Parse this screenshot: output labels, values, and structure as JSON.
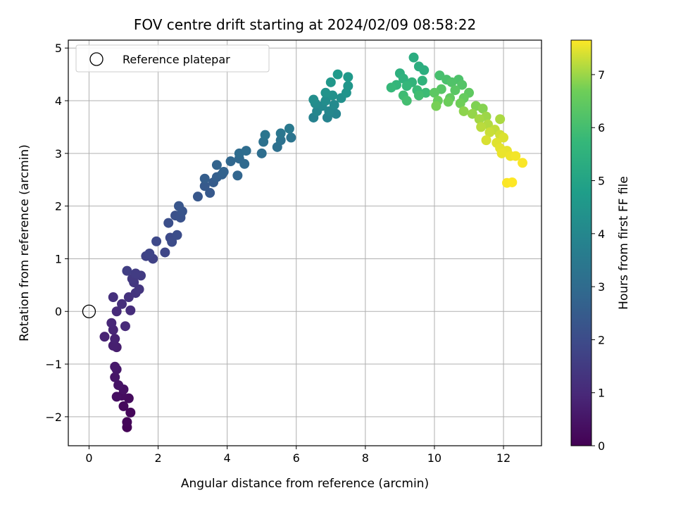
{
  "chart_data": {
    "type": "scatter",
    "title": "FOV centre drift starting at 2024/02/09 08:58:22",
    "xlabel": "Angular distance from reference (arcmin)",
    "ylabel": "Rotation from reference (arcmin)",
    "xlim": [
      -0.6,
      13.1
    ],
    "ylim": [
      -2.55,
      5.15
    ],
    "xticks": [
      "0",
      "2",
      "4",
      "6",
      "8",
      "10",
      "12"
    ],
    "yticks": [
      "−2",
      "−1",
      "0",
      "1",
      "2",
      "3",
      "4",
      "5"
    ],
    "grid": true,
    "legend": {
      "position": "top-left",
      "entries": [
        "Reference platepar"
      ]
    },
    "reference_point": {
      "x": 0,
      "y": 0
    },
    "colorbar": {
      "label": "Hours from first FF file",
      "range": [
        0,
        7.65
      ],
      "ticks": [
        "0",
        "1",
        "2",
        "3",
        "4",
        "5",
        "6",
        "7"
      ],
      "colormap": "viridis"
    },
    "points": [
      {
        "x": 1.1,
        "y": -2.2,
        "t": 0.05
      },
      {
        "x": 1.1,
        "y": -2.1,
        "t": 0.1
      },
      {
        "x": 1.2,
        "y": -1.92,
        "t": 0.15
      },
      {
        "x": 1.0,
        "y": -1.8,
        "t": 0.2
      },
      {
        "x": 1.15,
        "y": -1.65,
        "t": 0.25
      },
      {
        "x": 0.95,
        "y": -1.6,
        "t": 0.3
      },
      {
        "x": 0.8,
        "y": -1.62,
        "t": 0.35
      },
      {
        "x": 1.0,
        "y": -1.48,
        "t": 0.4
      },
      {
        "x": 0.85,
        "y": -1.4,
        "t": 0.45
      },
      {
        "x": 0.75,
        "y": -1.25,
        "t": 0.5
      },
      {
        "x": 0.8,
        "y": -1.1,
        "t": 0.55
      },
      {
        "x": 0.75,
        "y": -1.05,
        "t": 0.6
      },
      {
        "x": 0.8,
        "y": -0.68,
        "t": 0.7
      },
      {
        "x": 0.7,
        "y": -0.65,
        "t": 0.75
      },
      {
        "x": 0.75,
        "y": -0.52,
        "t": 0.8
      },
      {
        "x": 0.45,
        "y": -0.48,
        "t": 0.85
      },
      {
        "x": 0.7,
        "y": -0.35,
        "t": 0.9
      },
      {
        "x": 0.65,
        "y": -0.22,
        "t": 0.95
      },
      {
        "x": 1.05,
        "y": -0.28,
        "t": 1.0
      },
      {
        "x": 0.8,
        "y": 0.0,
        "t": 1.05
      },
      {
        "x": 1.2,
        "y": 0.02,
        "t": 1.1
      },
      {
        "x": 0.95,
        "y": 0.14,
        "t": 1.15
      },
      {
        "x": 0.7,
        "y": 0.27,
        "t": 1.2
      },
      {
        "x": 1.15,
        "y": 0.27,
        "t": 1.25
      },
      {
        "x": 1.35,
        "y": 0.35,
        "t": 1.3
      },
      {
        "x": 1.45,
        "y": 0.42,
        "t": 1.35
      },
      {
        "x": 1.3,
        "y": 0.55,
        "t": 1.4
      },
      {
        "x": 1.25,
        "y": 0.62,
        "t": 1.45
      },
      {
        "x": 1.5,
        "y": 0.68,
        "t": 1.5
      },
      {
        "x": 1.35,
        "y": 0.72,
        "t": 1.55
      },
      {
        "x": 1.1,
        "y": 0.77,
        "t": 1.6
      },
      {
        "x": 1.85,
        "y": 1.0,
        "t": 1.7
      },
      {
        "x": 1.65,
        "y": 1.05,
        "t": 1.75
      },
      {
        "x": 1.75,
        "y": 1.1,
        "t": 1.8
      },
      {
        "x": 2.2,
        "y": 1.12,
        "t": 1.85
      },
      {
        "x": 1.95,
        "y": 1.33,
        "t": 1.9
      },
      {
        "x": 2.35,
        "y": 1.4,
        "t": 1.95
      },
      {
        "x": 2.4,
        "y": 1.32,
        "t": 2.0
      },
      {
        "x": 2.55,
        "y": 1.45,
        "t": 2.05
      },
      {
        "x": 2.3,
        "y": 1.68,
        "t": 2.1
      },
      {
        "x": 2.5,
        "y": 1.82,
        "t": 2.15
      },
      {
        "x": 2.65,
        "y": 1.78,
        "t": 2.2
      },
      {
        "x": 2.7,
        "y": 1.9,
        "t": 2.25
      },
      {
        "x": 2.6,
        "y": 2.0,
        "t": 2.3
      },
      {
        "x": 3.15,
        "y": 2.18,
        "t": 2.35
      },
      {
        "x": 3.5,
        "y": 2.25,
        "t": 2.4
      },
      {
        "x": 3.35,
        "y": 2.38,
        "t": 2.45
      },
      {
        "x": 3.6,
        "y": 2.45,
        "t": 2.5
      },
      {
        "x": 3.35,
        "y": 2.52,
        "t": 2.55
      },
      {
        "x": 3.7,
        "y": 2.55,
        "t": 2.6
      },
      {
        "x": 3.85,
        "y": 2.6,
        "t": 2.65
      },
      {
        "x": 3.9,
        "y": 2.65,
        "t": 2.7
      },
      {
        "x": 3.7,
        "y": 2.78,
        "t": 2.75
      },
      {
        "x": 4.3,
        "y": 2.58,
        "t": 2.8
      },
      {
        "x": 4.1,
        "y": 2.85,
        "t": 2.85
      },
      {
        "x": 4.35,
        "y": 2.9,
        "t": 2.9
      },
      {
        "x": 4.5,
        "y": 2.8,
        "t": 2.95
      },
      {
        "x": 4.35,
        "y": 3.0,
        "t": 3.0
      },
      {
        "x": 4.55,
        "y": 3.05,
        "t": 3.05
      },
      {
        "x": 5.0,
        "y": 3.0,
        "t": 3.1
      },
      {
        "x": 5.45,
        "y": 3.12,
        "t": 3.15
      },
      {
        "x": 5.05,
        "y": 3.22,
        "t": 3.2
      },
      {
        "x": 5.55,
        "y": 3.25,
        "t": 3.25
      },
      {
        "x": 5.85,
        "y": 3.3,
        "t": 3.3
      },
      {
        "x": 5.1,
        "y": 3.35,
        "t": 3.35
      },
      {
        "x": 5.55,
        "y": 3.38,
        "t": 3.4
      },
      {
        "x": 5.8,
        "y": 3.47,
        "t": 3.5
      },
      {
        "x": 6.5,
        "y": 3.68,
        "t": 3.8
      },
      {
        "x": 6.9,
        "y": 3.68,
        "t": 3.85
      },
      {
        "x": 7.15,
        "y": 3.75,
        "t": 3.9
      },
      {
        "x": 6.6,
        "y": 3.8,
        "t": 3.95
      },
      {
        "x": 6.95,
        "y": 3.8,
        "t": 4.0
      },
      {
        "x": 6.75,
        "y": 3.9,
        "t": 4.05
      },
      {
        "x": 7.1,
        "y": 3.92,
        "t": 4.1
      },
      {
        "x": 6.55,
        "y": 3.95,
        "t": 4.15
      },
      {
        "x": 6.85,
        "y": 4.0,
        "t": 4.2
      },
      {
        "x": 6.5,
        "y": 4.02,
        "t": 4.25
      },
      {
        "x": 7.3,
        "y": 4.05,
        "t": 4.3
      },
      {
        "x": 7.05,
        "y": 4.1,
        "t": 4.35
      },
      {
        "x": 6.85,
        "y": 4.15,
        "t": 4.4
      },
      {
        "x": 7.45,
        "y": 4.15,
        "t": 4.45
      },
      {
        "x": 7.5,
        "y": 4.28,
        "t": 4.5
      },
      {
        "x": 7.0,
        "y": 4.35,
        "t": 4.55
      },
      {
        "x": 7.5,
        "y": 4.45,
        "t": 4.6
      },
      {
        "x": 7.2,
        "y": 4.5,
        "t": 4.65
      },
      {
        "x": 9.4,
        "y": 4.82,
        "t": 5.3
      },
      {
        "x": 9.55,
        "y": 4.65,
        "t": 5.35
      },
      {
        "x": 9.7,
        "y": 4.58,
        "t": 5.4
      },
      {
        "x": 9.0,
        "y": 4.52,
        "t": 5.45
      },
      {
        "x": 9.1,
        "y": 4.42,
        "t": 5.5
      },
      {
        "x": 9.65,
        "y": 4.38,
        "t": 5.55
      },
      {
        "x": 9.35,
        "y": 4.35,
        "t": 5.6
      },
      {
        "x": 8.9,
        "y": 4.3,
        "t": 5.65
      },
      {
        "x": 9.2,
        "y": 4.28,
        "t": 5.7
      },
      {
        "x": 8.75,
        "y": 4.25,
        "t": 5.75
      },
      {
        "x": 9.5,
        "y": 4.2,
        "t": 5.8
      },
      {
        "x": 9.75,
        "y": 4.15,
        "t": 5.85
      },
      {
        "x": 9.1,
        "y": 4.1,
        "t": 5.9
      },
      {
        "x": 9.55,
        "y": 4.1,
        "t": 5.95
      },
      {
        "x": 9.2,
        "y": 4.0,
        "t": 6.0
      },
      {
        "x": 10.15,
        "y": 4.48,
        "t": 6.05
      },
      {
        "x": 10.35,
        "y": 4.4,
        "t": 6.1
      },
      {
        "x": 10.7,
        "y": 4.4,
        "t": 6.15
      },
      {
        "x": 10.5,
        "y": 4.35,
        "t": 6.2
      },
      {
        "x": 10.8,
        "y": 4.3,
        "t": 6.25
      },
      {
        "x": 10.2,
        "y": 4.22,
        "t": 6.3
      },
      {
        "x": 10.6,
        "y": 4.2,
        "t": 6.35
      },
      {
        "x": 10.0,
        "y": 4.15,
        "t": 6.4
      },
      {
        "x": 11.0,
        "y": 4.15,
        "t": 6.45
      },
      {
        "x": 10.45,
        "y": 4.05,
        "t": 6.5
      },
      {
        "x": 10.85,
        "y": 4.05,
        "t": 6.55
      },
      {
        "x": 10.1,
        "y": 4.0,
        "t": 6.6
      },
      {
        "x": 10.4,
        "y": 3.98,
        "t": 6.65
      },
      {
        "x": 10.75,
        "y": 3.95,
        "t": 6.7
      },
      {
        "x": 10.05,
        "y": 3.9,
        "t": 6.75
      },
      {
        "x": 11.2,
        "y": 3.9,
        "t": 6.8
      },
      {
        "x": 11.4,
        "y": 3.85,
        "t": 6.85
      },
      {
        "x": 10.85,
        "y": 3.8,
        "t": 6.9
      },
      {
        "x": 11.1,
        "y": 3.75,
        "t": 6.95
      },
      {
        "x": 11.5,
        "y": 3.7,
        "t": 7.0
      },
      {
        "x": 11.3,
        "y": 3.65,
        "t": 7.05
      },
      {
        "x": 11.9,
        "y": 3.65,
        "t": 7.1
      },
      {
        "x": 11.55,
        "y": 3.55,
        "t": 7.15
      },
      {
        "x": 11.35,
        "y": 3.5,
        "t": 7.2
      },
      {
        "x": 11.75,
        "y": 3.45,
        "t": 7.25
      },
      {
        "x": 11.6,
        "y": 3.4,
        "t": 7.3
      },
      {
        "x": 11.9,
        "y": 3.35,
        "t": 7.35
      },
      {
        "x": 11.5,
        "y": 3.25,
        "t": 7.4
      },
      {
        "x": 12.0,
        "y": 3.3,
        "t": 7.42
      },
      {
        "x": 11.8,
        "y": 3.2,
        "t": 7.45
      },
      {
        "x": 11.9,
        "y": 3.1,
        "t": 7.48
      },
      {
        "x": 12.1,
        "y": 3.05,
        "t": 7.5
      },
      {
        "x": 11.95,
        "y": 3.0,
        "t": 7.52
      },
      {
        "x": 12.2,
        "y": 2.95,
        "t": 7.55
      },
      {
        "x": 12.35,
        "y": 2.95,
        "t": 7.58
      },
      {
        "x": 12.55,
        "y": 2.82,
        "t": 7.62
      },
      {
        "x": 12.1,
        "y": 2.44,
        "t": 7.63
      },
      {
        "x": 12.25,
        "y": 2.45,
        "t": 7.65
      }
    ]
  }
}
